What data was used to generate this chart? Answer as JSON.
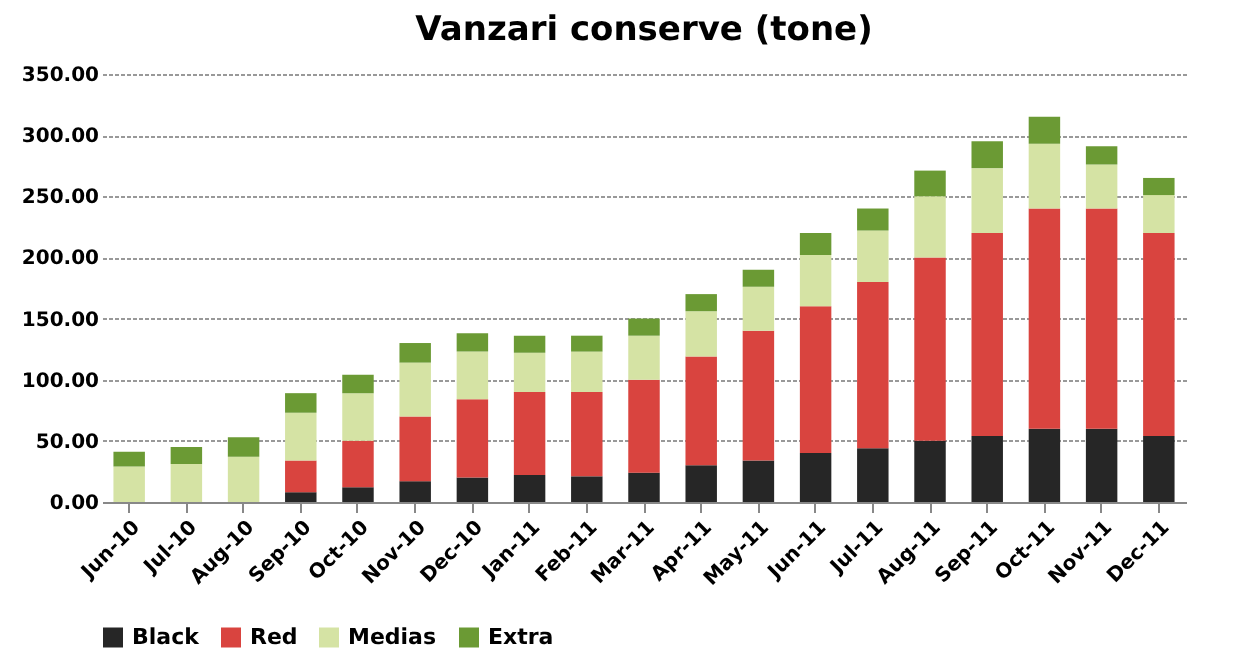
{
  "chart_data": {
    "type": "bar",
    "title": "Vanzari conserve (tone)",
    "stacked": true,
    "grid": "y",
    "legend": "bottom",
    "categories": [
      "Jun-10",
      "Jul-10",
      "Aug-10",
      "Sep-10",
      "Oct-10",
      "Nov-10",
      "Dec-10",
      "Jan-11",
      "Feb-11",
      "Mar-11",
      "Apr-11",
      "May-11",
      "Jun-11",
      "Jul-11",
      "Aug-11",
      "Sep-11",
      "Oct-11",
      "Nov-11",
      "Dec-11"
    ],
    "ylim": [
      0,
      350
    ],
    "yticks": [
      {
        "value": 0,
        "label": "0.00"
      },
      {
        "value": 50,
        "label": "50.00"
      },
      {
        "value": 100,
        "label": "100.00"
      },
      {
        "value": 150,
        "label": "150.00"
      },
      {
        "value": 200,
        "label": "200.00"
      },
      {
        "value": 250,
        "label": "250.00"
      },
      {
        "value": 300,
        "label": "300.00"
      },
      {
        "value": 350,
        "label": "350.00"
      }
    ],
    "series": [
      {
        "name": "Black",
        "color": "#262626",
        "values": [
          0,
          0,
          0,
          8,
          12,
          17,
          20,
          22,
          21,
          24,
          30,
          34,
          40,
          44,
          50,
          54,
          60,
          60,
          54
        ]
      },
      {
        "name": "Red",
        "color": "#d9443f",
        "values": [
          0,
          0,
          0,
          26,
          38,
          53,
          64,
          68,
          69,
          76,
          89,
          106,
          120,
          136,
          150,
          166,
          180,
          180,
          166
        ]
      },
      {
        "name": "Medias",
        "color": "#d5e3a4",
        "values": [
          29,
          31,
          37,
          39,
          39,
          44,
          39,
          32,
          33,
          36,
          37,
          36,
          42,
          42,
          50,
          53,
          53,
          36,
          31
        ]
      },
      {
        "name": "Extra",
        "color": "#6b9a34",
        "values": [
          12,
          14,
          16,
          16,
          15,
          16,
          15,
          14,
          13,
          14,
          14,
          14,
          18,
          18,
          21,
          22,
          22,
          15,
          14
        ]
      }
    ]
  }
}
